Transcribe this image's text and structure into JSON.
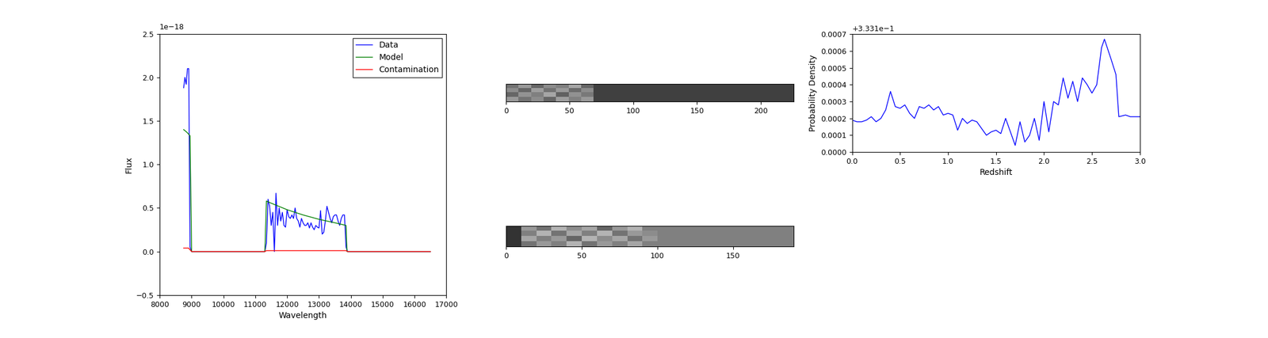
{
  "chart_data": [
    {
      "type": "line",
      "x_label": "Wavelength",
      "y_label": "Flux",
      "offset_label": "1e−18",
      "xlim": [
        8000,
        17000
      ],
      "ylim": [
        -0.5,
        2.5
      ],
      "xticks": [
        8000,
        9000,
        10000,
        11000,
        12000,
        13000,
        14000,
        15000,
        16000,
        17000
      ],
      "yticks": [
        {
          "value": -0.5,
          "label": "−0.5"
        },
        {
          "value": 0.0,
          "label": "0.0"
        },
        {
          "value": 0.5,
          "label": "0.5"
        },
        {
          "value": 1.0,
          "label": "1.0"
        },
        {
          "value": 1.5,
          "label": "1.5"
        },
        {
          "value": 2.0,
          "label": "2.0"
        },
        {
          "value": 2.5,
          "label": "2.5"
        }
      ],
      "legend": "upper right",
      "series": [
        {
          "name": "Data",
          "color": "#0000ff",
          "x": [
            8750,
            8790,
            8830,
            8870,
            8910,
            8950,
            9000,
            11300,
            11350,
            11400,
            11450,
            11500,
            11550,
            11600,
            11650,
            11700,
            11750,
            11800,
            11850,
            11900,
            11950,
            12000,
            12050,
            12100,
            12150,
            12200,
            12250,
            12300,
            12350,
            12400,
            12450,
            12500,
            12550,
            12600,
            12650,
            12700,
            12750,
            12800,
            12850,
            12900,
            12950,
            13000,
            13050,
            13100,
            13150,
            13200,
            13250,
            13300,
            13350,
            13400,
            13450,
            13500,
            13550,
            13600,
            13650,
            13700,
            13750,
            13800,
            13850,
            13900,
            16500
          ],
          "values": [
            1.88,
            2.0,
            1.92,
            2.1,
            2.1,
            0.05,
            0.0,
            0.0,
            0.1,
            0.6,
            0.52,
            0.3,
            0.45,
            0.0,
            0.67,
            0.3,
            0.5,
            0.35,
            0.45,
            0.3,
            0.28,
            0.48,
            0.4,
            0.38,
            0.42,
            0.38,
            0.5,
            0.38,
            0.35,
            0.28,
            0.38,
            0.33,
            0.3,
            0.3,
            0.33,
            0.27,
            0.33,
            0.28,
            0.25,
            0.3,
            0.28,
            0.27,
            0.47,
            0.2,
            0.22,
            0.35,
            0.52,
            0.45,
            0.38,
            0.33,
            0.4,
            0.42,
            0.42,
            0.35,
            0.3,
            0.38,
            0.42,
            0.42,
            0.05,
            0.0,
            0.0
          ]
        },
        {
          "name": "Model",
          "color": "#008000",
          "x": [
            8750,
            8850,
            8950,
            9000,
            11300,
            11350,
            11400,
            12000,
            12500,
            13000,
            13500,
            13850,
            13880,
            16500
          ],
          "values": [
            1.4,
            1.37,
            1.33,
            0.0,
            0.0,
            0.58,
            0.57,
            0.48,
            0.42,
            0.37,
            0.33,
            0.3,
            0.0,
            0.0
          ]
        },
        {
          "name": "Contamination",
          "color": "#ff0000",
          "x": [
            8750,
            8900,
            9000,
            11300,
            11350,
            13850,
            13900,
            16500
          ],
          "values": [
            0.04,
            0.04,
            0.0,
            0.0,
            0.01,
            0.01,
            0.0,
            0.0
          ]
        }
      ]
    },
    {
      "type": "heatmap",
      "tick_labels": "x",
      "xlim": [
        0,
        226
      ],
      "xticks": [
        0,
        50,
        100,
        150,
        200
      ],
      "clim": [
        0,
        1
      ],
      "cells": [
        [
          0.45,
          0.6,
          0.4,
          0.55,
          0.5,
          0.65,
          0.4,
          0.25,
          0.25,
          0.25,
          0.25,
          0.25,
          0.25,
          0.25,
          0.25,
          0.25,
          0.25,
          0.25,
          0.25,
          0.25,
          0.25,
          0.25,
          0.25
        ],
        [
          0.55,
          0.4,
          0.62,
          0.45,
          0.6,
          0.42,
          0.55,
          0.25,
          0.25,
          0.25,
          0.25,
          0.25,
          0.25,
          0.25,
          0.25,
          0.25,
          0.25,
          0.25,
          0.25,
          0.25,
          0.25,
          0.25,
          0.25
        ],
        [
          0.4,
          0.58,
          0.5,
          0.65,
          0.38,
          0.57,
          0.48,
          0.25,
          0.25,
          0.25,
          0.25,
          0.25,
          0.25,
          0.25,
          0.25,
          0.25,
          0.25,
          0.25,
          0.25,
          0.25,
          0.25,
          0.25,
          0.25
        ],
        [
          0.6,
          0.45,
          0.55,
          0.4,
          0.62,
          0.5,
          0.6,
          0.25,
          0.25,
          0.25,
          0.25,
          0.25,
          0.25,
          0.25,
          0.25,
          0.25,
          0.25,
          0.25,
          0.25,
          0.25,
          0.25,
          0.25,
          0.25
        ]
      ]
    },
    {
      "type": "heatmap",
      "tick_labels": "x",
      "xlim": [
        0,
        190
      ],
      "xticks": [
        0,
        50,
        100,
        150
      ],
      "clim": [
        0,
        1
      ],
      "cells": [
        [
          0.2,
          0.6,
          0.45,
          0.7,
          0.55,
          0.65,
          0.4,
          0.6,
          0.7,
          0.5,
          0.5,
          0.5,
          0.5,
          0.5,
          0.5,
          0.5,
          0.5,
          0.5,
          0.5
        ],
        [
          0.2,
          0.5,
          0.7,
          0.45,
          0.65,
          0.5,
          0.7,
          0.45,
          0.6,
          0.55,
          0.5,
          0.5,
          0.5,
          0.5,
          0.5,
          0.5,
          0.5,
          0.5,
          0.5
        ],
        [
          0.2,
          0.65,
          0.5,
          0.6,
          0.4,
          0.7,
          0.55,
          0.65,
          0.45,
          0.6,
          0.5,
          0.5,
          0.5,
          0.5,
          0.5,
          0.5,
          0.5,
          0.5,
          0.5
        ],
        [
          0.2,
          0.45,
          0.6,
          0.5,
          0.7,
          0.45,
          0.6,
          0.5,
          0.65,
          0.5,
          0.5,
          0.5,
          0.5,
          0.5,
          0.5,
          0.5,
          0.5,
          0.5,
          0.5
        ]
      ]
    },
    {
      "type": "line",
      "x_label": "Redshift",
      "y_label": "Probability Density",
      "offset_label": "+3.331e−1",
      "xlim": [
        0.0,
        3.0
      ],
      "ylim": [
        0.0,
        0.0007
      ],
      "xticks": [
        {
          "value": 0.0,
          "label": "0.0"
        },
        {
          "value": 0.5,
          "label": "0.5"
        },
        {
          "value": 1.0,
          "label": "1.0"
        },
        {
          "value": 1.5,
          "label": "1.5"
        },
        {
          "value": 2.0,
          "label": "2.0"
        },
        {
          "value": 2.5,
          "label": "2.5"
        },
        {
          "value": 3.0,
          "label": "3.0"
        }
      ],
      "yticks": [
        {
          "value": 0.0,
          "label": "0.0000"
        },
        {
          "value": 0.0001,
          "label": "0.0001"
        },
        {
          "value": 0.0002,
          "label": "0.0002"
        },
        {
          "value": 0.0003,
          "label": "0.0003"
        },
        {
          "value": 0.0004,
          "label": "0.0004"
        },
        {
          "value": 0.0005,
          "label": "0.0005"
        },
        {
          "value": 0.0006,
          "label": "0.0006"
        },
        {
          "value": 0.0007,
          "label": "0.0007"
        }
      ],
      "color": "#0000ff",
      "x": [
        0.0,
        0.05,
        0.1,
        0.15,
        0.2,
        0.25,
        0.3,
        0.35,
        0.4,
        0.45,
        0.5,
        0.55,
        0.6,
        0.65,
        0.7,
        0.75,
        0.8,
        0.85,
        0.9,
        0.95,
        1.0,
        1.05,
        1.1,
        1.15,
        1.2,
        1.25,
        1.3,
        1.35,
        1.4,
        1.45,
        1.5,
        1.55,
        1.6,
        1.65,
        1.7,
        1.75,
        1.8,
        1.85,
        1.9,
        1.95,
        2.0,
        2.05,
        2.1,
        2.15,
        2.2,
        2.25,
        2.3,
        2.35,
        2.4,
        2.45,
        2.5,
        2.55,
        2.6,
        2.63,
        2.7,
        2.75,
        2.78,
        2.85,
        2.9,
        3.0
      ],
      "values": [
        0.00019,
        0.00018,
        0.00018,
        0.00019,
        0.00021,
        0.00018,
        0.0002,
        0.00025,
        0.00036,
        0.00027,
        0.00026,
        0.00028,
        0.00023,
        0.0002,
        0.00027,
        0.00026,
        0.00028,
        0.00025,
        0.00027,
        0.00022,
        0.00023,
        0.00022,
        0.00013,
        0.0002,
        0.00017,
        0.00019,
        0.00018,
        0.00014,
        0.0001,
        0.00012,
        0.00013,
        0.00011,
        0.0002,
        0.00012,
        4e-05,
        0.00018,
        6e-05,
        0.0001,
        0.0002,
        7e-05,
        0.0003,
        0.00012,
        0.0003,
        0.00028,
        0.00044,
        0.00032,
        0.00042,
        0.0003,
        0.00044,
        0.0004,
        0.00035,
        0.0004,
        0.00062,
        0.00067,
        0.00055,
        0.00046,
        0.00021,
        0.00022,
        0.00021,
        0.00021
      ]
    }
  ]
}
